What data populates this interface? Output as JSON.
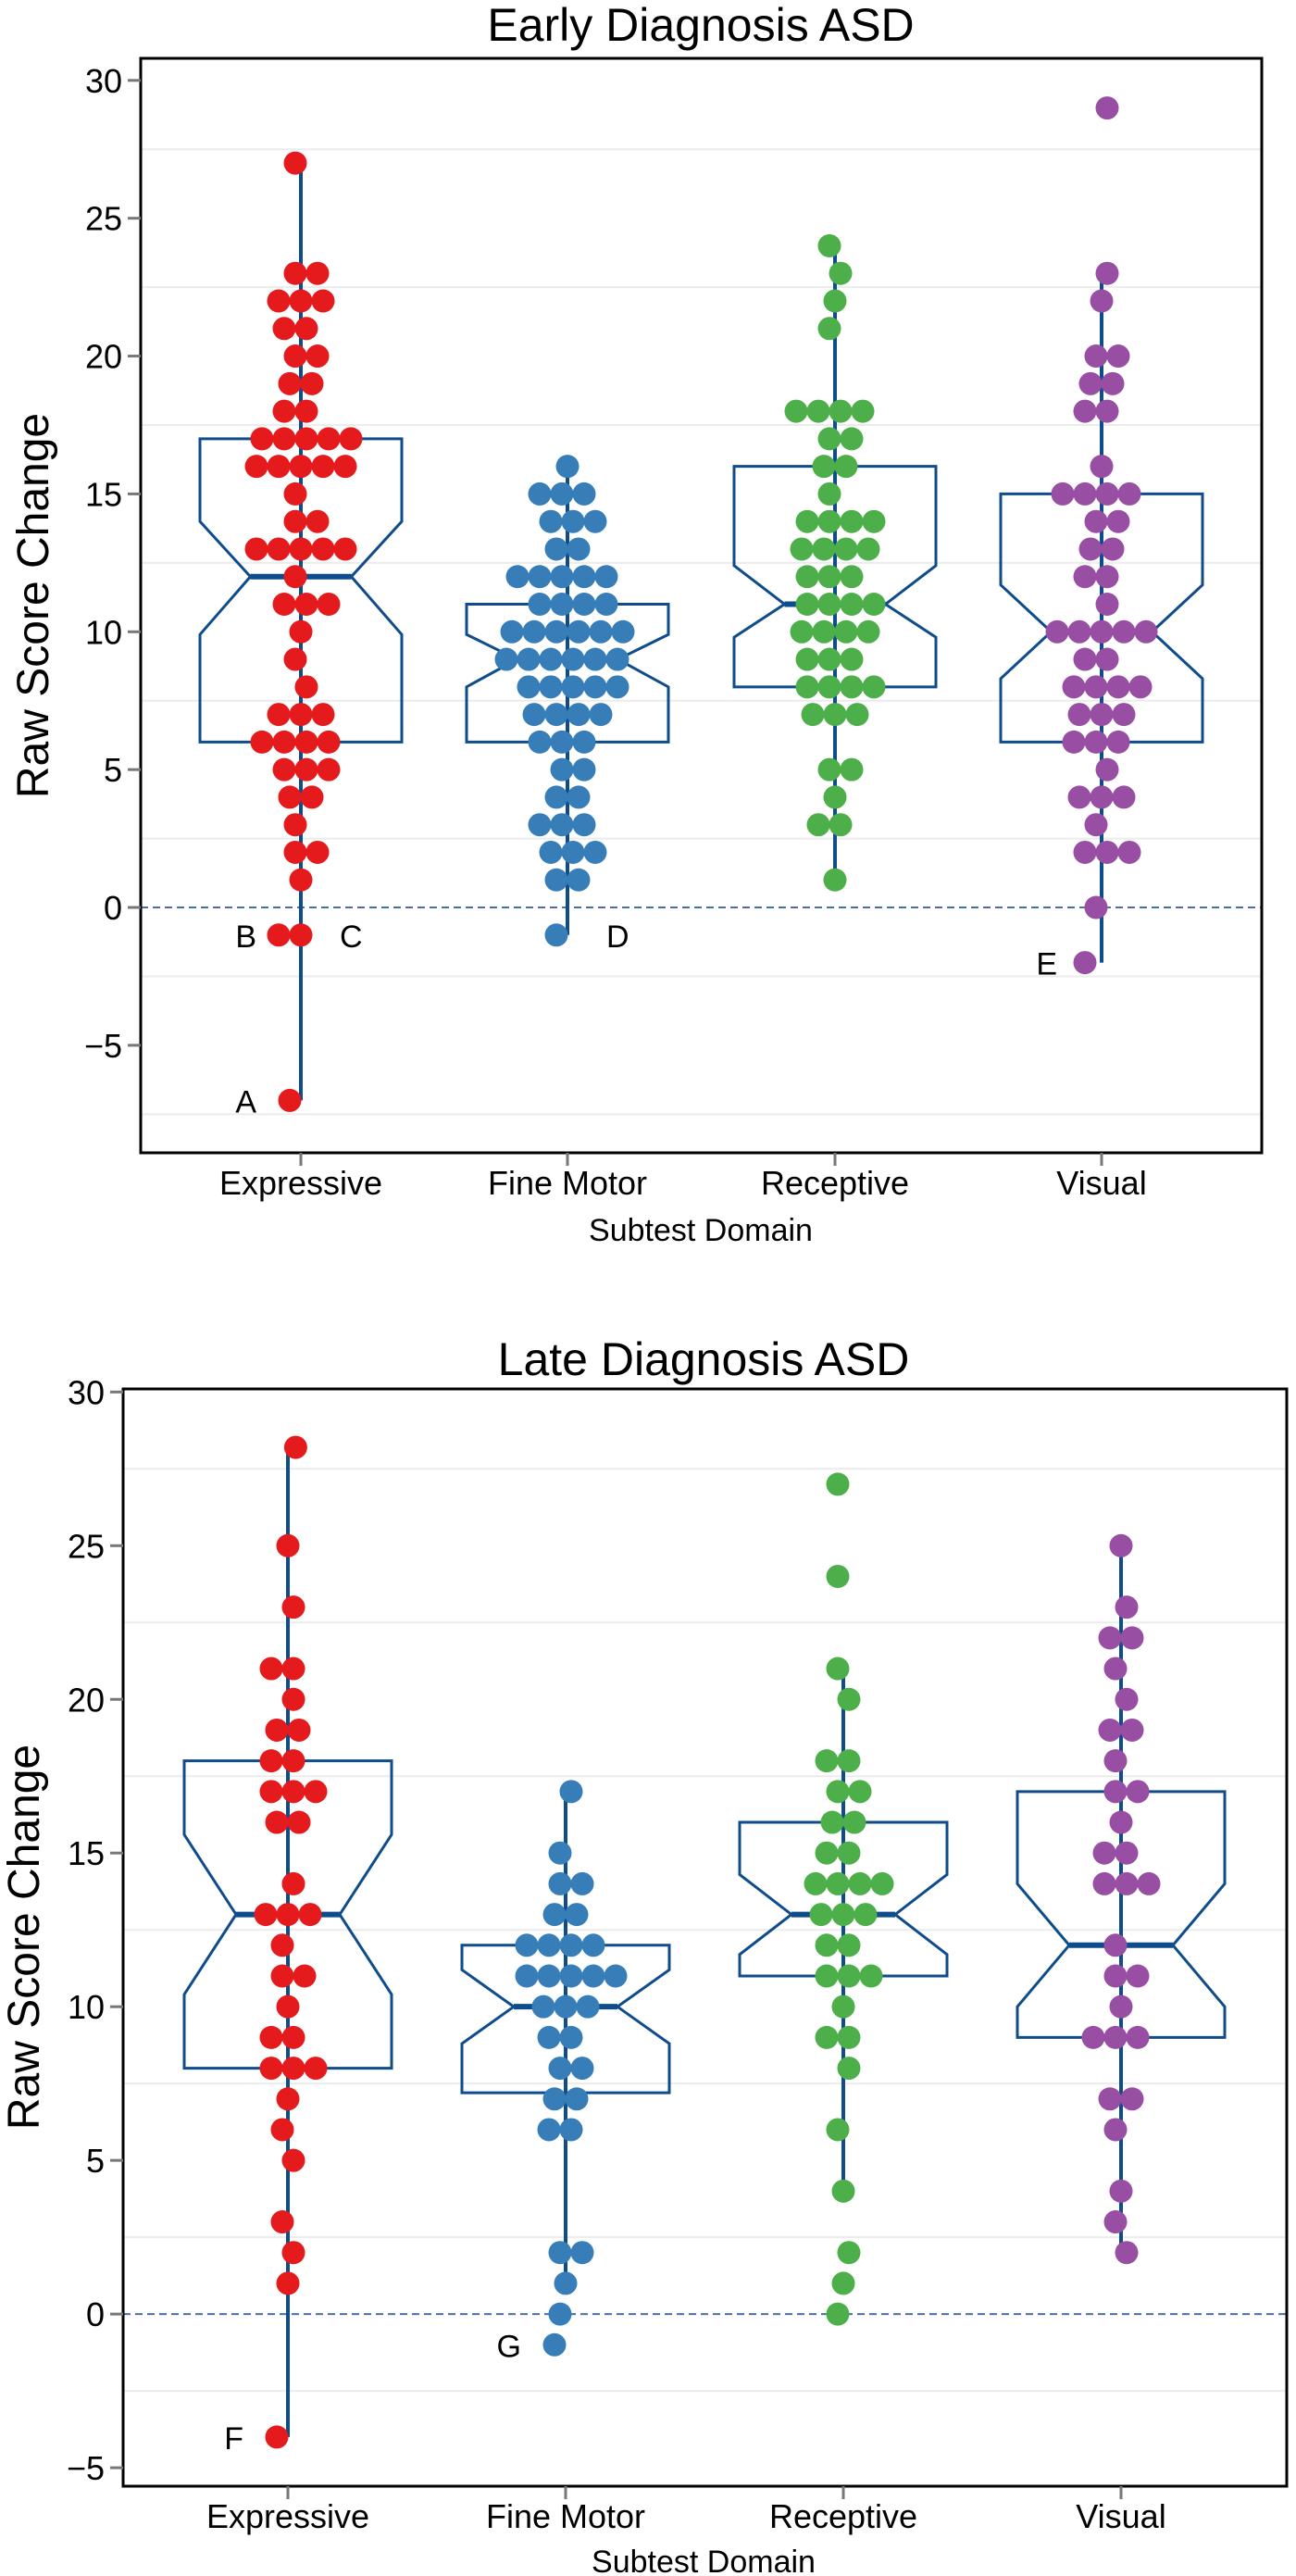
{
  "chart_data": [
    {
      "type": "box",
      "title": "Early Diagnosis ASD",
      "xlabel": "Subtest Domain",
      "ylabel": "Raw Score Change",
      "ylim": [
        -8.9,
        30.8
      ],
      "yticks": [
        -5,
        0,
        5,
        10,
        15,
        20,
        25,
        30
      ],
      "grid": true,
      "reference_line": 0,
      "categories": [
        "Expressive",
        "Fine Motor",
        "Receptive",
        "Visual"
      ],
      "colors": [
        "#e41a1c",
        "#377eb8",
        "#4daf4a",
        "#984ea3"
      ],
      "box_color": "#0f4c8c",
      "boxes": [
        {
          "q1": 6,
          "median": 12,
          "q3": 17,
          "whisker_low": -7,
          "whisker_high": 27,
          "notch": [
            9.9,
            14.0
          ]
        },
        {
          "q1": 6,
          "median": 9,
          "q3": 11,
          "whisker_low": -1,
          "whisker_high": 16,
          "notch": [
            8.0,
            9.9
          ]
        },
        {
          "q1": 8,
          "median": 11,
          "q3": 16,
          "whisker_low": 1,
          "whisker_high": 24,
          "notch": [
            9.8,
            12.4
          ]
        },
        {
          "q1": 6,
          "median": 10,
          "q3": 15,
          "whisker_low": -2,
          "whisker_high": 23,
          "notch": [
            8.3,
            11.7
          ]
        }
      ],
      "points": [
        [
          27,
          23,
          23,
          22,
          22,
          22,
          21,
          21,
          20,
          20,
          19,
          19,
          18,
          18,
          17,
          17,
          17,
          17,
          17,
          16,
          16,
          16,
          16,
          16,
          15,
          14,
          14,
          13,
          13,
          13,
          13,
          13,
          12,
          11,
          11,
          11,
          10,
          9,
          8,
          7,
          7,
          7,
          6,
          6,
          6,
          6,
          5,
          5,
          5,
          4,
          4,
          3,
          2,
          2,
          1,
          -1,
          -1,
          -7
        ],
        [
          16,
          15,
          15,
          15,
          14,
          14,
          14,
          13,
          13,
          12,
          12,
          12,
          12,
          12,
          11,
          11,
          11,
          11,
          10,
          10,
          10,
          10,
          10,
          10,
          9,
          9,
          9,
          9,
          9,
          9,
          8,
          8,
          8,
          8,
          8,
          7,
          7,
          7,
          7,
          6,
          6,
          6,
          5,
          5,
          4,
          4,
          3,
          3,
          3,
          2,
          2,
          2,
          1,
          1,
          -1
        ],
        [
          24,
          23,
          22,
          21,
          18,
          18,
          18,
          18,
          17,
          17,
          16,
          16,
          15,
          14,
          14,
          14,
          14,
          13,
          13,
          13,
          13,
          12,
          12,
          12,
          11,
          11,
          11,
          11,
          10,
          10,
          10,
          10,
          9,
          9,
          9,
          8,
          8,
          8,
          8,
          7,
          7,
          7,
          5,
          5,
          4,
          3,
          3,
          1
        ],
        [
          29,
          23,
          22,
          20,
          20,
          19,
          19,
          18,
          18,
          16,
          15,
          15,
          15,
          15,
          14,
          14,
          13,
          13,
          12,
          12,
          11,
          10,
          10,
          10,
          10,
          10,
          9,
          9,
          8,
          8,
          8,
          8,
          7,
          7,
          7,
          6,
          6,
          6,
          5,
          4,
          4,
          4,
          3,
          2,
          2,
          2,
          0,
          -2
        ]
      ],
      "annotations": [
        {
          "label": "A",
          "category": "Expressive",
          "value": -7,
          "side": "left"
        },
        {
          "label": "B",
          "category": "Expressive",
          "value": -1,
          "side": "left"
        },
        {
          "label": "C",
          "category": "Expressive",
          "value": -1,
          "side": "right"
        },
        {
          "label": "D",
          "category": "Fine Motor",
          "value": -1,
          "side": "right"
        },
        {
          "label": "E",
          "category": "Visual",
          "value": -2,
          "side": "left"
        }
      ]
    },
    {
      "type": "box",
      "title": "Late Diagnosis ASD",
      "xlabel": "Subtest Domain",
      "ylabel": "Raw Score Change",
      "ylim": [
        -5.6,
        30.1
      ],
      "yticks": [
        -5,
        0,
        5,
        10,
        15,
        20,
        25,
        30
      ],
      "grid": true,
      "reference_line": 0,
      "categories": [
        "Expressive",
        "Fine Motor",
        "Receptive",
        "Visual"
      ],
      "colors": [
        "#e41a1c",
        "#377eb8",
        "#4daf4a",
        "#984ea3"
      ],
      "box_color": "#0f4c8c",
      "boxes": [
        {
          "q1": 8,
          "median": 13,
          "q3": 18,
          "whisker_low": -4,
          "whisker_high": 28.2,
          "notch": [
            10.4,
            15.6
          ]
        },
        {
          "q1": 7.2,
          "median": 10,
          "q3": 12,
          "whisker_low": 1,
          "whisker_high": 17,
          "notch": [
            8.8,
            11.2
          ]
        },
        {
          "q1": 11,
          "median": 13,
          "q3": 16,
          "whisker_low": 4,
          "whisker_high": 21,
          "notch": [
            11.7,
            14.3
          ]
        },
        {
          "q1": 9,
          "median": 12,
          "q3": 17,
          "whisker_low": 2,
          "whisker_high": 25,
          "notch": [
            10.0,
            14.0
          ]
        }
      ],
      "points": [
        [
          28.2,
          25,
          23,
          21,
          21,
          20,
          19,
          19,
          18,
          18,
          17,
          17,
          17,
          16,
          16,
          14,
          13,
          13,
          13,
          12,
          11,
          11,
          10,
          9,
          9,
          8,
          8,
          8,
          7,
          6,
          5,
          3,
          2,
          1,
          -4
        ],
        [
          17,
          15,
          14,
          14,
          13,
          13,
          12,
          12,
          12,
          12,
          11,
          11,
          11,
          11,
          11,
          10,
          10,
          10,
          9,
          9,
          8,
          8,
          7,
          7,
          6,
          6,
          2,
          2,
          1,
          0,
          -1
        ],
        [
          27,
          24,
          21,
          20,
          18,
          18,
          17,
          17,
          16,
          16,
          15,
          15,
          14,
          14,
          14,
          14,
          13,
          13,
          13,
          12,
          12,
          11,
          11,
          11,
          10,
          9,
          9,
          8,
          6,
          4,
          2,
          1,
          0
        ],
        [
          25,
          23,
          22,
          22,
          21,
          20,
          19,
          19,
          18,
          17,
          17,
          16,
          15,
          15,
          14,
          14,
          14,
          12,
          11,
          11,
          10,
          9,
          9,
          9,
          7,
          7,
          6,
          4,
          3,
          2
        ]
      ],
      "annotations": [
        {
          "label": "F",
          "category": "Expressive",
          "value": -4,
          "side": "left"
        },
        {
          "label": "G",
          "category": "Fine Motor",
          "value": -1,
          "side": "left"
        }
      ]
    }
  ]
}
